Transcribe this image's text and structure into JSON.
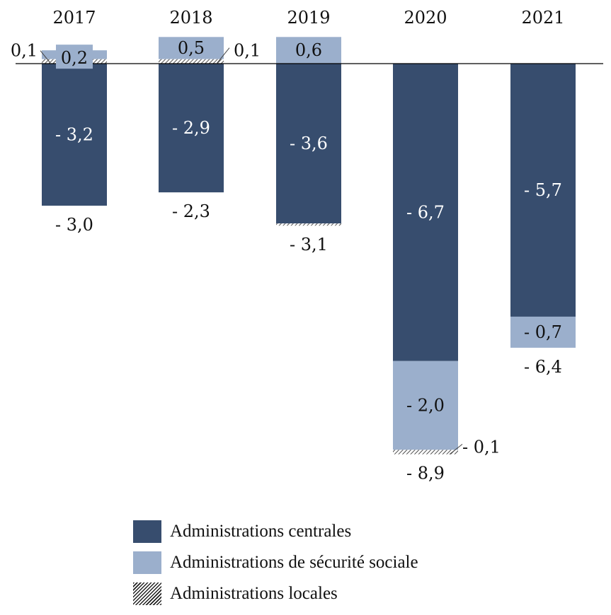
{
  "chart_data": {
    "type": "bar",
    "stacked": true,
    "categories": [
      "2017",
      "2018",
      "2019",
      "2020",
      "2021"
    ],
    "series": [
      {
        "name": "Administrations centrales",
        "color": "#374d6e",
        "values": [
          -3.2,
          -2.9,
          -3.6,
          -6.7,
          -5.7
        ],
        "labels": [
          "- 3,2",
          "- 2,9",
          "- 3,6",
          "- 6,7",
          "- 5,7"
        ]
      },
      {
        "name": "Administrations de sécurité sociale",
        "color": "#9bafcc",
        "values": [
          0.2,
          0.5,
          0.6,
          -2.0,
          -0.7
        ],
        "labels": [
          "0,2",
          "0,5",
          "0,6",
          "- 2,0",
          "- 0,7"
        ]
      },
      {
        "name": "Administrations locales",
        "pattern": "hatched",
        "values": [
          0.1,
          0.1,
          -0.05,
          -0.1,
          0
        ],
        "labels": [
          "0,1",
          "0,1",
          null,
          "- 0,1",
          null
        ]
      }
    ],
    "totals": [
      -3.0,
      -2.3,
      -3.1,
      -8.9,
      -6.4
    ],
    "total_labels": [
      "- 3,0",
      "- 2,3",
      "- 3,1",
      "- 8,9",
      "- 6,4"
    ],
    "legend_position": "bottom",
    "grid": false
  }
}
